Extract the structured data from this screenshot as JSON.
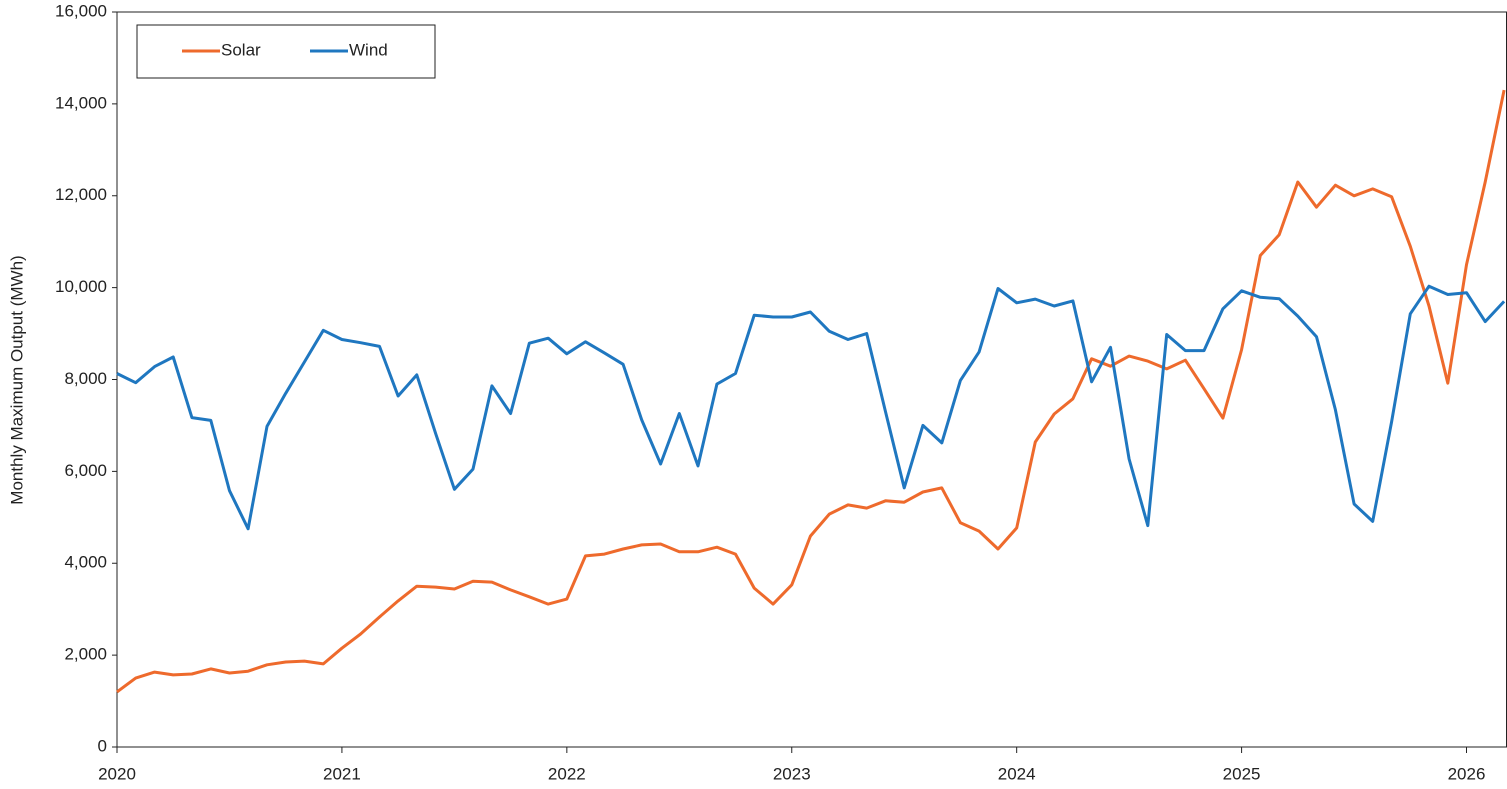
{
  "chart_data": {
    "type": "line",
    "y_label": "Monthly Maximum Output (MWh)",
    "x": [
      2020,
      2020.083,
      2020.167,
      2020.25,
      2020.333,
      2020.417,
      2020.5,
      2020.583,
      2020.667,
      2020.75,
      2020.833,
      2020.917,
      2021,
      2021.083,
      2021.167,
      2021.25,
      2021.333,
      2021.417,
      2021.5,
      2021.583,
      2021.667,
      2021.75,
      2021.833,
      2021.917,
      2022,
      2022.083,
      2022.167,
      2022.25,
      2022.333,
      2022.417,
      2022.5,
      2022.583,
      2022.667,
      2022.75,
      2022.833,
      2022.917,
      2023,
      2023.083,
      2023.167,
      2023.25,
      2023.333,
      2023.417,
      2023.5,
      2023.583,
      2023.667,
      2023.75,
      2023.833,
      2023.917,
      2024,
      2024.083,
      2024.167,
      2024.25,
      2024.333,
      2024.417,
      2024.5,
      2024.583,
      2024.667,
      2024.75,
      2024.833,
      2024.917,
      2025,
      2025.083,
      2025.167,
      2025.25,
      2025.333,
      2025.417,
      2025.5,
      2025.583,
      2025.667,
      2025.75,
      2025.833,
      2025.917,
      2026,
      2026.083,
      2026.167
    ],
    "series": [
      {
        "name": "Solar",
        "color": "#ee6a2c",
        "values": [
          1200,
          1500,
          1630,
          1570,
          1590,
          1700,
          1610,
          1650,
          1790,
          1850,
          1870,
          1810,
          2150,
          2460,
          2830,
          3180,
          3500,
          3480,
          3440,
          3610,
          3590,
          3420,
          3270,
          3110,
          3220,
          4160,
          4200,
          4310,
          4400,
          4420,
          4250,
          4250,
          4350,
          4200,
          3460,
          3110,
          3530,
          4590,
          5070,
          5270,
          5200,
          5360,
          5330,
          5550,
          5640,
          4880,
          4700,
          4310,
          4770,
          6640,
          7250,
          7580,
          8450,
          8290,
          8510,
          8400,
          8230,
          8420,
          7800,
          7160,
          8650,
          10700,
          11150,
          12300,
          11750,
          12230,
          12000,
          12150,
          11980,
          10900,
          9600,
          7920,
          10500,
          12300,
          14300
        ]
      },
      {
        "name": "Wind",
        "color": "#1f77c0",
        "values": [
          8130,
          7930,
          8280,
          8490,
          7170,
          7110,
          5580,
          4750,
          6980,
          7700,
          8380,
          9070,
          8870,
          8800,
          8720,
          7640,
          8100,
          6820,
          5610,
          6050,
          7860,
          7260,
          8790,
          8900,
          8560,
          8820,
          8580,
          8330,
          7120,
          6160,
          7260,
          6120,
          7900,
          8130,
          9400,
          9360,
          9360,
          9470,
          9050,
          8870,
          9000,
          7300,
          5640,
          7000,
          6620,
          7980,
          8600,
          9980,
          9670,
          9750,
          9600,
          9710,
          7950,
          8700,
          6270,
          4820,
          8980,
          8630,
          8630,
          9540,
          9930,
          9790,
          9760,
          9380,
          8930,
          7340,
          5290,
          4910,
          7080,
          9430,
          10030,
          9850,
          9890,
          9260,
          9700
        ]
      }
    ],
    "xlim": [
      2020,
      2026.18
    ],
    "xticks": [
      2020,
      2021,
      2022,
      2023,
      2024,
      2025,
      2026
    ],
    "ylim": [
      0,
      16000
    ],
    "yticks": [
      0,
      {
        "value": 2000,
        "label": "2,000"
      },
      {
        "value": 4000,
        "label": "4,000"
      },
      {
        "value": 6000,
        "label": "6,000"
      },
      {
        "value": 8000,
        "label": "8,000"
      },
      {
        "value": 10000,
        "label": "10,000"
      },
      {
        "value": 12000,
        "label": "12,000"
      },
      {
        "value": 14000,
        "label": "14,000"
      },
      {
        "value": 16000,
        "label": "16,000"
      }
    ],
    "grid": false,
    "legend": "top-left"
  }
}
